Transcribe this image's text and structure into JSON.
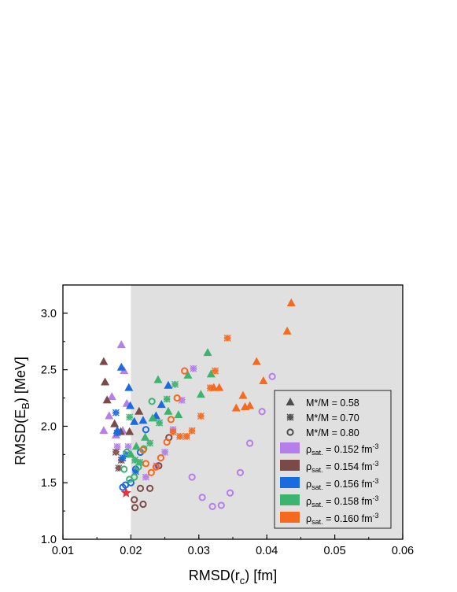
{
  "chart_data": {
    "type": "scatter",
    "title": "",
    "xlabel": "RMSD(r",
    "xlabel_sub": "c",
    "xlabel_unit": ")  [fm]",
    "ylabel": "RMSD(E",
    "ylabel_sub": "B",
    "ylabel_unit": ")  [MeV]",
    "xlim": [
      0.01,
      0.06
    ],
    "ylim": [
      1.0,
      3.25
    ],
    "xticks": [
      "0.01",
      "0.02",
      "0.03",
      "0.04",
      "0.05",
      "0.06"
    ],
    "yticks": [
      "1.0",
      "1.5",
      "2.0",
      "2.5",
      "3.0"
    ],
    "shaded_region": {
      "x_from": 0.02,
      "x_to": 0.06,
      "color": "#e0e0e0"
    },
    "legend_position": "lower-right",
    "marker_legend": [
      {
        "marker": "triangle",
        "label": "M*/M = 0.58"
      },
      {
        "marker": "cross",
        "label": "M*/M = 0.70"
      },
      {
        "marker": "circle",
        "label": "M*/M = 0.80"
      }
    ],
    "series": [
      {
        "label_prefix": "ρ",
        "label_sub": "sat.",
        "label_value": " = 0.152 fm",
        "label_sup": "-3",
        "color": "#b57ee8",
        "points": [
          {
            "m": "triangle",
            "x": 0.016,
            "y": 1.96
          },
          {
            "m": "triangle",
            "x": 0.0168,
            "y": 2.09
          },
          {
            "m": "triangle",
            "x": 0.0172,
            "y": 2.26
          },
          {
            "m": "triangle",
            "x": 0.0178,
            "y": 1.92
          },
          {
            "m": "triangle",
            "x": 0.0186,
            "y": 2.72
          },
          {
            "m": "triangle",
            "x": 0.019,
            "y": 2.49
          },
          {
            "m": "triangle",
            "x": 0.0194,
            "y": 2.2
          },
          {
            "m": "triangle",
            "x": 0.0188,
            "y": 1.96
          },
          {
            "m": "cross",
            "x": 0.018,
            "y": 1.82
          },
          {
            "m": "cross",
            "x": 0.0196,
            "y": 1.82
          },
          {
            "m": "cross",
            "x": 0.0222,
            "y": 1.55
          },
          {
            "m": "cross",
            "x": 0.0238,
            "y": 1.65
          },
          {
            "m": "cross",
            "x": 0.025,
            "y": 1.77
          },
          {
            "m": "cross",
            "x": 0.0262,
            "y": 1.97
          },
          {
            "m": "cross",
            "x": 0.0275,
            "y": 2.23
          },
          {
            "m": "cross",
            "x": 0.0292,
            "y": 2.51
          },
          {
            "m": "circle",
            "x": 0.029,
            "y": 1.55
          },
          {
            "m": "circle",
            "x": 0.0305,
            "y": 1.37
          },
          {
            "m": "circle",
            "x": 0.032,
            "y": 1.29
          },
          {
            "m": "circle",
            "x": 0.0333,
            "y": 1.3
          },
          {
            "m": "circle",
            "x": 0.0346,
            "y": 1.41
          },
          {
            "m": "circle",
            "x": 0.0361,
            "y": 1.59
          },
          {
            "m": "circle",
            "x": 0.0375,
            "y": 1.85
          },
          {
            "m": "circle",
            "x": 0.0393,
            "y": 2.13
          },
          {
            "m": "circle",
            "x": 0.0408,
            "y": 2.44
          }
        ]
      },
      {
        "label_prefix": "ρ",
        "label_sub": "sat.",
        "label_value": " = 0.154 fm",
        "label_sup": "-3",
        "color": "#7a4a48",
        "points": [
          {
            "m": "triangle",
            "x": 0.016,
            "y": 2.57
          },
          {
            "m": "triangle",
            "x": 0.0162,
            "y": 2.39
          },
          {
            "m": "triangle",
            "x": 0.0165,
            "y": 2.23
          },
          {
            "m": "triangle",
            "x": 0.0176,
            "y": 2.02
          },
          {
            "m": "triangle",
            "x": 0.0185,
            "y": 1.95
          },
          {
            "m": "triangle",
            "x": 0.0198,
            "y": 1.95
          },
          {
            "m": "triangle",
            "x": 0.0212,
            "y": 2.13
          },
          {
            "m": "cross",
            "x": 0.0178,
            "y": 1.77
          },
          {
            "m": "cross",
            "x": 0.0182,
            "y": 1.63
          },
          {
            "m": "cross",
            "x": 0.0186,
            "y": 1.7
          },
          {
            "m": "circle",
            "x": 0.0205,
            "y": 1.35
          },
          {
            "m": "circle",
            "x": 0.0206,
            "y": 1.28
          },
          {
            "m": "circle",
            "x": 0.0214,
            "y": 1.45
          },
          {
            "m": "circle",
            "x": 0.0218,
            "y": 1.31
          },
          {
            "m": "circle",
            "x": 0.0228,
            "y": 1.45
          },
          {
            "m": "circle",
            "x": 0.0241,
            "y": 1.65
          },
          {
            "m": "circle",
            "x": 0.0256,
            "y": 1.9
          }
        ]
      },
      {
        "label_prefix": "ρ",
        "label_sub": "sat.",
        "label_value": " = 0.156 fm",
        "label_sup": "-3",
        "color": "#1a6be0",
        "points": [
          {
            "m": "triangle",
            "x": 0.018,
            "y": 1.96
          },
          {
            "m": "triangle",
            "x": 0.0186,
            "y": 2.52
          },
          {
            "m": "triangle",
            "x": 0.0197,
            "y": 2.34
          },
          {
            "m": "triangle",
            "x": 0.0199,
            "y": 2.18
          },
          {
            "m": "triangle",
            "x": 0.0205,
            "y": 2.04
          },
          {
            "m": "triangle",
            "x": 0.0218,
            "y": 2.05
          },
          {
            "m": "triangle",
            "x": 0.0237,
            "y": 2.09
          },
          {
            "m": "triangle",
            "x": 0.0245,
            "y": 2.19
          },
          {
            "m": "triangle",
            "x": 0.0255,
            "y": 2.36
          },
          {
            "m": "cross",
            "x": 0.0178,
            "y": 2.12
          },
          {
            "m": "cross",
            "x": 0.018,
            "y": 1.94
          },
          {
            "m": "cross",
            "x": 0.0188,
            "y": 1.72
          },
          {
            "m": "cross",
            "x": 0.0193,
            "y": 1.75
          },
          {
            "m": "cross",
            "x": 0.0207,
            "y": 1.6
          },
          {
            "m": "circle",
            "x": 0.0188,
            "y": 1.46
          },
          {
            "m": "circle",
            "x": 0.0192,
            "y": 1.48
          },
          {
            "m": "circle",
            "x": 0.02,
            "y": 1.5
          },
          {
            "m": "circle",
            "x": 0.0207,
            "y": 1.62
          },
          {
            "m": "circle",
            "x": 0.0214,
            "y": 1.77
          },
          {
            "m": "circle",
            "x": 0.0222,
            "y": 1.97
          }
        ]
      },
      {
        "label_prefix": "ρ",
        "label_sub": "sat.",
        "label_value": " = 0.158 fm",
        "label_sup": "-3",
        "color": "#3db370",
        "points": [
          {
            "m": "triangle",
            "x": 0.02,
            "y": 1.75
          },
          {
            "m": "triangle",
            "x": 0.0208,
            "y": 1.82
          },
          {
            "m": "triangle",
            "x": 0.0221,
            "y": 1.9
          },
          {
            "m": "triangle",
            "x": 0.0232,
            "y": 2.07
          },
          {
            "m": "triangle",
            "x": 0.024,
            "y": 2.41
          },
          {
            "m": "triangle",
            "x": 0.0255,
            "y": 2.13
          },
          {
            "m": "triangle",
            "x": 0.027,
            "y": 2.1
          },
          {
            "m": "triangle",
            "x": 0.0284,
            "y": 2.45
          },
          {
            "m": "triangle",
            "x": 0.0303,
            "y": 2.28
          },
          {
            "m": "triangle",
            "x": 0.0313,
            "y": 2.65
          },
          {
            "m": "triangle",
            "x": 0.0318,
            "y": 2.46
          },
          {
            "m": "cross",
            "x": 0.0198,
            "y": 2.08
          },
          {
            "m": "cross",
            "x": 0.0206,
            "y": 1.7
          },
          {
            "m": "cross",
            "x": 0.0213,
            "y": 1.68
          },
          {
            "m": "cross",
            "x": 0.0228,
            "y": 1.85
          },
          {
            "m": "cross",
            "x": 0.0242,
            "y": 2.03
          },
          {
            "m": "cross",
            "x": 0.0253,
            "y": 2.24
          },
          {
            "m": "cross",
            "x": 0.0265,
            "y": 2.37
          },
          {
            "m": "circle",
            "x": 0.019,
            "y": 1.62
          },
          {
            "m": "circle",
            "x": 0.0194,
            "y": 1.77
          },
          {
            "m": "circle",
            "x": 0.0198,
            "y": 1.53
          },
          {
            "m": "circle",
            "x": 0.0205,
            "y": 1.55
          },
          {
            "m": "circle",
            "x": 0.0211,
            "y": 1.64
          },
          {
            "m": "circle",
            "x": 0.0219,
            "y": 1.8
          },
          {
            "m": "circle",
            "x": 0.0231,
            "y": 2.22
          }
        ]
      },
      {
        "label_prefix": "ρ",
        "label_sub": "sat.",
        "label_value": " = 0.160 fm",
        "label_sup": "-3",
        "color": "#f56a1e",
        "points": [
          {
            "m": "triangle",
            "x": 0.0322,
            "y": 2.34
          },
          {
            "m": "triangle",
            "x": 0.033,
            "y": 2.34
          },
          {
            "m": "triangle",
            "x": 0.0355,
            "y": 2.16
          },
          {
            "m": "triangle",
            "x": 0.0365,
            "y": 2.27
          },
          {
            "m": "triangle",
            "x": 0.0368,
            "y": 2.17
          },
          {
            "m": "triangle",
            "x": 0.0375,
            "y": 2.18
          },
          {
            "m": "triangle",
            "x": 0.0385,
            "y": 2.57
          },
          {
            "m": "triangle",
            "x": 0.0395,
            "y": 2.4
          },
          {
            "m": "triangle",
            "x": 0.043,
            "y": 2.84
          },
          {
            "m": "triangle",
            "x": 0.0436,
            "y": 3.09
          },
          {
            "m": "cross",
            "x": 0.0262,
            "y": 1.95
          },
          {
            "m": "cross",
            "x": 0.0272,
            "y": 1.91
          },
          {
            "m": "cross",
            "x": 0.0282,
            "y": 1.91
          },
          {
            "m": "cross",
            "x": 0.029,
            "y": 1.96
          },
          {
            "m": "cross",
            "x": 0.0303,
            "y": 2.09
          },
          {
            "m": "cross",
            "x": 0.0317,
            "y": 2.34
          },
          {
            "m": "cross",
            "x": 0.0324,
            "y": 2.49
          },
          {
            "m": "cross",
            "x": 0.0342,
            "y": 2.78
          },
          {
            "m": "circle",
            "x": 0.0218,
            "y": 1.79
          },
          {
            "m": "circle",
            "x": 0.0222,
            "y": 1.67
          },
          {
            "m": "circle",
            "x": 0.023,
            "y": 1.59
          },
          {
            "m": "circle",
            "x": 0.0237,
            "y": 1.64
          },
          {
            "m": "circle",
            "x": 0.0244,
            "y": 1.72
          },
          {
            "m": "circle",
            "x": 0.0253,
            "y": 1.86
          },
          {
            "m": "circle",
            "x": 0.0259,
            "y": 2.06
          },
          {
            "m": "circle",
            "x": 0.0268,
            "y": 2.25
          },
          {
            "m": "circle",
            "x": 0.0279,
            "y": 2.49
          }
        ]
      }
    ],
    "highlight_point": {
      "marker": "star",
      "x": 0.0193,
      "y": 1.41,
      "color": "#e8323a"
    }
  }
}
